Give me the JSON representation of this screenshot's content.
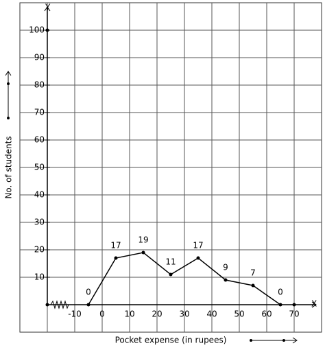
{
  "chart_data": {
    "type": "line",
    "x_label": "Pocket expense (in rupees)",
    "y_label": "No. of students",
    "x_axis_name": "X",
    "y_axis_name": "Y",
    "x": [
      -5,
      5,
      15,
      25,
      35,
      45,
      55,
      65
    ],
    "values": [
      0,
      17,
      19,
      11,
      17,
      9,
      7,
      0
    ],
    "color": "#000000",
    "xlim": [
      -30,
      80
    ],
    "ylim": [
      -10,
      110
    ],
    "xticks": [
      -10,
      0,
      10,
      20,
      30,
      40,
      50,
      60,
      70
    ],
    "yticks": [
      10,
      20,
      30,
      40,
      50,
      60,
      70,
      80,
      90,
      100
    ],
    "grid": true
  }
}
